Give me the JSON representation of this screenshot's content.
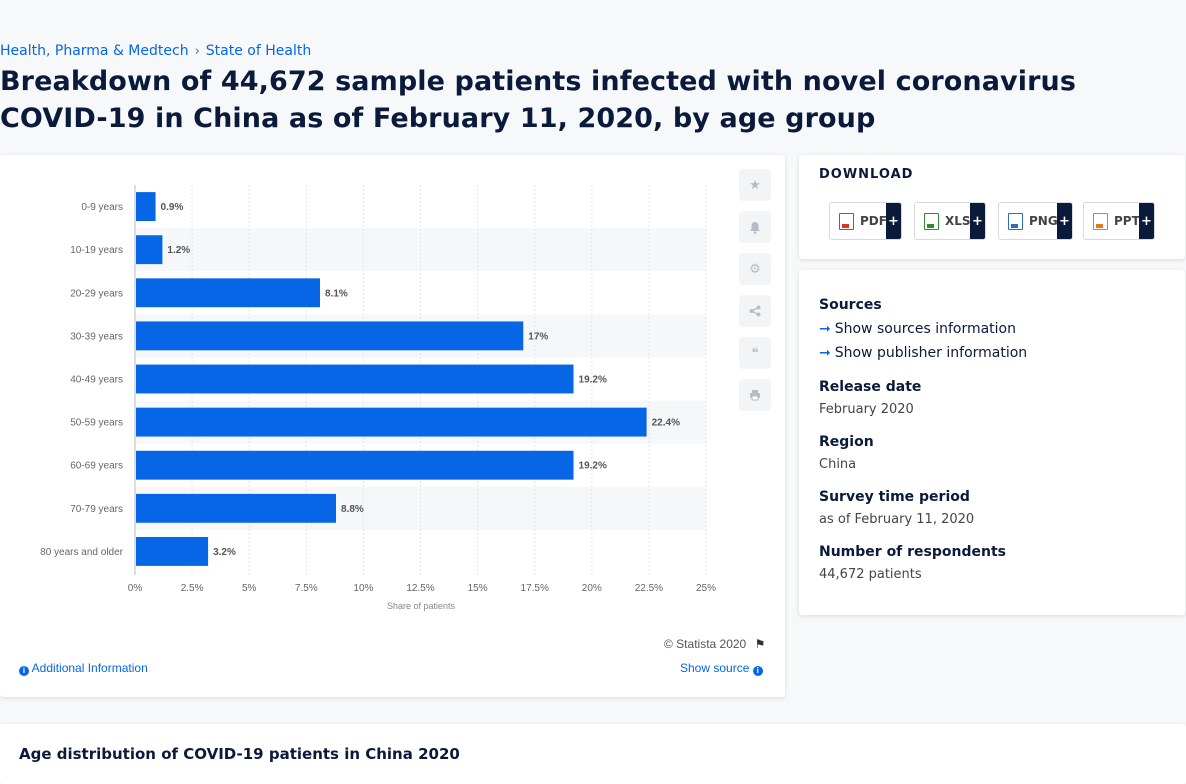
{
  "breadcrumb": {
    "item1": "Health, Pharma & Medtech",
    "item2": "State of Health"
  },
  "page_title": "Breakdown of 44,672 sample patients infected with novel coronavirus COVID-19 in China as of February 11, 2020, by age group",
  "chart_data": {
    "type": "bar",
    "orientation": "horizontal",
    "categories": [
      "0-9 years",
      "10-19 years",
      "20-29 years",
      "30-39 years",
      "40-49 years",
      "50-59 years",
      "60-69 years",
      "70-79 years",
      "80 years and older"
    ],
    "values": [
      0.9,
      1.2,
      8.1,
      17,
      19.2,
      22.4,
      19.2,
      8.8,
      3.2
    ],
    "value_labels": [
      "0.9%",
      "1.2%",
      "8.1%",
      "17%",
      "19.2%",
      "22.4%",
      "19.2%",
      "8.8%",
      "3.2%"
    ],
    "xlabel": "Share of patients",
    "x_ticks": [
      "0%",
      "2.5%",
      "5%",
      "7.5%",
      "10%",
      "12.5%",
      "15%",
      "17.5%",
      "20%",
      "22.5%",
      "25%"
    ],
    "xlim": [
      0,
      25
    ],
    "grid": true,
    "bar_color": "#0666e5"
  },
  "chart_footer": {
    "credit": "© Statista 2020",
    "additional_info": "Additional Information",
    "show_source": "Show source"
  },
  "toolbar_icons": [
    "star-icon",
    "bell-icon",
    "gear-icon",
    "share-icon",
    "quote-icon",
    "print-icon"
  ],
  "download": {
    "heading": "DOWNLOAD",
    "buttons": [
      {
        "label": "PDF",
        "color": "#d9342b"
      },
      {
        "label": "XLS",
        "color": "#2e8b3a"
      },
      {
        "label": "PNG",
        "color": "#2f6fb5"
      },
      {
        "label": "PPT",
        "color": "#e07b22"
      }
    ],
    "plus": "+"
  },
  "meta": {
    "sources_label": "Sources",
    "show_sources": "Show sources information",
    "show_publisher": "Show publisher information",
    "release_label": "Release date",
    "release_value": "February 2020",
    "region_label": "Region",
    "region_value": "China",
    "survey_label": "Survey time period",
    "survey_value": "as of February 11, 2020",
    "respondents_label": "Number of respondents",
    "respondents_value": "44,672 patients"
  },
  "bottom_title": "Age distribution of COVID-19 patients in China 2020"
}
